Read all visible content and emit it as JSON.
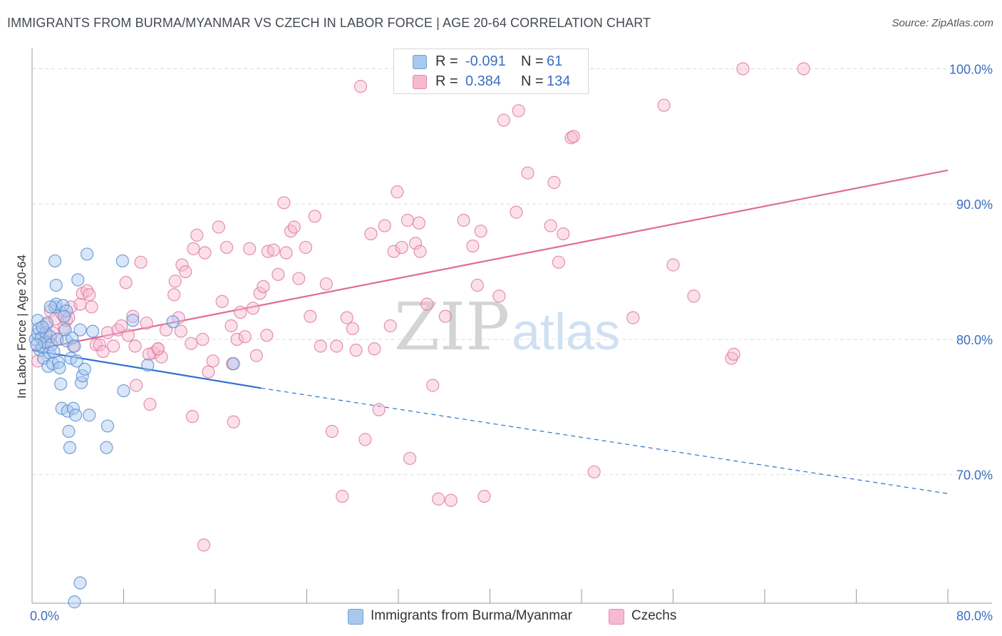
{
  "title": "IMMIGRANTS FROM BURMA/MYANMAR VS CZECH IN LABOR FORCE | AGE 20-64 CORRELATION CHART",
  "source": "Source: ZipAtlas.com",
  "watermark": {
    "zip": "ZIP",
    "atlas": "atlas"
  },
  "legend_stats": [
    {
      "r_label": "R =",
      "r_value": "-0.091",
      "n_label": "N =",
      "n_value": "61",
      "color": "#a9c8ee",
      "border": "#6f9fd8"
    },
    {
      "r_label": "R =",
      "r_value": "0.384",
      "n_label": "N =",
      "n_value": "134",
      "color": "#f6bad0",
      "border": "#e28aab"
    }
  ],
  "colors": {
    "burma_fill": "#a9c8ee",
    "burma_stroke": "#5b8fd4",
    "burma_line": "#2f6fd0",
    "czech_fill": "#f6bad0",
    "czech_stroke": "#e07ca2",
    "czech_line": "#e06b96",
    "axis_text": "#3b6fc4",
    "grid": "#dddddd"
  },
  "chart_data": {
    "type": "scatter",
    "xlabel": "",
    "ylabel": "In Labor Force | Age 20-64",
    "xlim": [
      0,
      80
    ],
    "ylim": [
      60.5,
      101.5
    ],
    "x_tick_labels": [
      {
        "value": 0,
        "label": "0.0%"
      },
      {
        "value": 80,
        "label": "80.0%"
      }
    ],
    "y_tick_labels": [
      {
        "value": 100,
        "label": "100.0%"
      },
      {
        "value": 90,
        "label": "90.0%"
      },
      {
        "value": 80,
        "label": "80.0%"
      },
      {
        "value": 70,
        "label": "70.0%"
      }
    ],
    "grid": true,
    "legend_position": "bottom",
    "series": [
      {
        "name": "Immigrants from Burma/Myanmar",
        "trend": {
          "x0": 0.0,
          "y0": 79.2,
          "x1": 20.0,
          "y1": 76.4,
          "dashed_to_x": 80.0,
          "dashed_to_y": 68.6
        },
        "points": [
          [
            0.3,
            80.0
          ],
          [
            0.5,
            80.4
          ],
          [
            0.5,
            81.4
          ],
          [
            0.6,
            80.8
          ],
          [
            0.7,
            79.2
          ],
          [
            0.8,
            80.1
          ],
          [
            0.9,
            79.4
          ],
          [
            1.0,
            78.6
          ],
          [
            1.1,
            79.8
          ],
          [
            1.2,
            80.5
          ],
          [
            1.3,
            81.2
          ],
          [
            1.4,
            78.0
          ],
          [
            1.5,
            79.0
          ],
          [
            1.6,
            80.2
          ],
          [
            1.7,
            79.6
          ],
          [
            1.8,
            78.2
          ],
          [
            1.9,
            79.1
          ],
          [
            2.0,
            82.4
          ],
          [
            2.1,
            82.6
          ],
          [
            2.2,
            80.0
          ],
          [
            2.3,
            78.3
          ],
          [
            2.4,
            77.9
          ],
          [
            2.5,
            76.7
          ],
          [
            2.6,
            74.9
          ],
          [
            2.7,
            82.5
          ],
          [
            2.9,
            80.7
          ],
          [
            3.0,
            79.9
          ],
          [
            3.1,
            74.7
          ],
          [
            3.2,
            73.2
          ],
          [
            3.3,
            72.0
          ],
          [
            3.4,
            78.6
          ],
          [
            3.5,
            80.1
          ],
          [
            3.6,
            74.9
          ],
          [
            3.7,
            79.5
          ],
          [
            3.8,
            74.4
          ],
          [
            3.9,
            78.4
          ],
          [
            4.0,
            84.4
          ],
          [
            4.2,
            80.7
          ],
          [
            4.3,
            76.8
          ],
          [
            4.4,
            77.3
          ],
          [
            4.6,
            77.8
          ],
          [
            4.8,
            86.3
          ],
          [
            5.0,
            74.4
          ],
          [
            5.3,
            80.6
          ],
          [
            2.0,
            85.8
          ],
          [
            2.1,
            84.0
          ],
          [
            3.0,
            82.1
          ],
          [
            6.6,
            73.6
          ],
          [
            6.5,
            72.0
          ],
          [
            7.9,
            85.8
          ],
          [
            8.0,
            76.2
          ],
          [
            8.8,
            81.4
          ],
          [
            10.1,
            78.1
          ],
          [
            12.3,
            81.3
          ],
          [
            17.6,
            78.2
          ],
          [
            4.2,
            62.0
          ],
          [
            3.7,
            60.6
          ],
          [
            0.4,
            79.6
          ],
          [
            1.6,
            82.4
          ],
          [
            2.8,
            81.7
          ],
          [
            0.9,
            80.9
          ]
        ]
      },
      {
        "name": "Czechs",
        "trend": {
          "x0": 0.0,
          "y0": 79.2,
          "x1": 80.0,
          "y1": 92.5
        },
        "points": [
          [
            0.5,
            78.4
          ],
          [
            1.0,
            80.2
          ],
          [
            1.2,
            81.1
          ],
          [
            1.4,
            79.8
          ],
          [
            1.6,
            82.1
          ],
          [
            1.8,
            80.5
          ],
          [
            2.0,
            81.5
          ],
          [
            2.2,
            80.0
          ],
          [
            2.6,
            81.9
          ],
          [
            2.8,
            80.9
          ],
          [
            3.0,
            81.4
          ],
          [
            3.2,
            81.6
          ],
          [
            3.4,
            82.4
          ],
          [
            3.6,
            79.5
          ],
          [
            4.2,
            82.6
          ],
          [
            4.4,
            83.4
          ],
          [
            4.8,
            83.6
          ],
          [
            5.0,
            83.3
          ],
          [
            5.2,
            82.4
          ],
          [
            5.6,
            79.6
          ],
          [
            5.9,
            79.6
          ],
          [
            6.2,
            79.1
          ],
          [
            6.6,
            80.5
          ],
          [
            7.1,
            79.5
          ],
          [
            7.5,
            80.7
          ],
          [
            7.8,
            81.0
          ],
          [
            8.2,
            84.2
          ],
          [
            8.4,
            80.3
          ],
          [
            8.8,
            81.7
          ],
          [
            9.1,
            76.6
          ],
          [
            9.5,
            85.7
          ],
          [
            10.0,
            81.2
          ],
          [
            10.3,
            75.2
          ],
          [
            10.6,
            79.0
          ],
          [
            11.0,
            79.3
          ],
          [
            11.3,
            78.7
          ],
          [
            11.7,
            80.7
          ],
          [
            12.4,
            83.3
          ],
          [
            12.5,
            84.3
          ],
          [
            12.8,
            81.6
          ],
          [
            13.1,
            85.5
          ],
          [
            13.4,
            85.0
          ],
          [
            13.9,
            79.7
          ],
          [
            14.1,
            86.7
          ],
          [
            14.4,
            87.7
          ],
          [
            14.9,
            80.0
          ],
          [
            15.1,
            86.4
          ],
          [
            15.4,
            77.6
          ],
          [
            15.8,
            78.4
          ],
          [
            16.3,
            88.3
          ],
          [
            16.6,
            82.8
          ],
          [
            17.0,
            86.8
          ],
          [
            17.4,
            81.0
          ],
          [
            17.6,
            73.9
          ],
          [
            17.9,
            80.0
          ],
          [
            18.2,
            82.0
          ],
          [
            18.6,
            80.2
          ],
          [
            19.0,
            86.7
          ],
          [
            19.3,
            82.3
          ],
          [
            19.6,
            78.8
          ],
          [
            19.9,
            83.4
          ],
          [
            20.2,
            83.9
          ],
          [
            20.6,
            86.5
          ],
          [
            21.1,
            86.6
          ],
          [
            21.5,
            84.8
          ],
          [
            22.0,
            90.1
          ],
          [
            22.2,
            86.4
          ],
          [
            22.6,
            88.0
          ],
          [
            22.9,
            88.3
          ],
          [
            23.3,
            84.5
          ],
          [
            23.9,
            86.8
          ],
          [
            24.3,
            81.7
          ],
          [
            24.7,
            89.1
          ],
          [
            25.2,
            79.5
          ],
          [
            25.7,
            84.1
          ],
          [
            26.2,
            73.2
          ],
          [
            26.6,
            79.5
          ],
          [
            27.1,
            68.4
          ],
          [
            27.5,
            81.6
          ],
          [
            28.0,
            80.8
          ],
          [
            28.3,
            79.2
          ],
          [
            28.7,
            98.7
          ],
          [
            29.1,
            72.6
          ],
          [
            29.6,
            87.8
          ],
          [
            29.9,
            79.3
          ],
          [
            30.3,
            74.8
          ],
          [
            30.8,
            88.4
          ],
          [
            31.3,
            81.0
          ],
          [
            31.6,
            86.5
          ],
          [
            31.9,
            90.9
          ],
          [
            32.3,
            86.8
          ],
          [
            32.8,
            88.8
          ],
          [
            33.0,
            71.2
          ],
          [
            33.5,
            87.1
          ],
          [
            33.9,
            86.5
          ],
          [
            33.8,
            88.6
          ],
          [
            34.5,
            82.6
          ],
          [
            35.0,
            76.6
          ],
          [
            35.5,
            68.2
          ],
          [
            36.1,
            81.7
          ],
          [
            36.6,
            68.1
          ],
          [
            37.7,
            88.8
          ],
          [
            38.5,
            86.9
          ],
          [
            38.9,
            84.0
          ],
          [
            39.2,
            88.0
          ],
          [
            39.5,
            68.4
          ],
          [
            40.8,
            83.2
          ],
          [
            41.2,
            96.2
          ],
          [
            42.3,
            89.4
          ],
          [
            42.5,
            96.9
          ],
          [
            43.3,
            92.3
          ],
          [
            45.3,
            88.4
          ],
          [
            45.6,
            91.6
          ],
          [
            46.0,
            85.7
          ],
          [
            46.4,
            87.8
          ],
          [
            47.1,
            94.9
          ],
          [
            47.3,
            95.0
          ],
          [
            49.1,
            70.2
          ],
          [
            52.5,
            81.6
          ],
          [
            55.2,
            97.3
          ],
          [
            56.0,
            85.5
          ],
          [
            57.8,
            83.2
          ],
          [
            61.1,
            78.6
          ],
          [
            61.3,
            78.9
          ],
          [
            62.1,
            100.0
          ],
          [
            67.4,
            100.0
          ],
          [
            17.5,
            78.2
          ],
          [
            15.0,
            64.8
          ],
          [
            14.0,
            74.3
          ],
          [
            10.2,
            78.9
          ],
          [
            11.0,
            79.3
          ],
          [
            13.0,
            80.6
          ],
          [
            9.0,
            79.5
          ],
          [
            20.5,
            80.3
          ]
        ]
      }
    ]
  }
}
